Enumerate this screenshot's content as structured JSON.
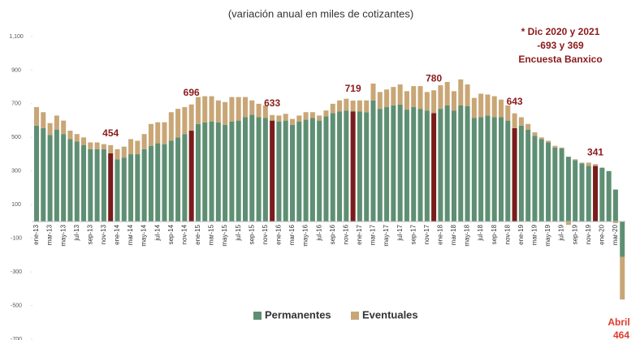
{
  "chart_data": {
    "type": "bar",
    "stacked": true,
    "title": "(variación anual en miles de cotizantes)",
    "note": [
      "* Dic 2020 y 2021",
      "-693 y 369",
      "Encuesta Banxico"
    ],
    "side_note": [
      "Abril",
      "464"
    ],
    "annotations": [
      "454",
      "696",
      "633",
      "719",
      "780",
      "643",
      "341"
    ],
    "highlight_color": "#7a1c1c",
    "categories": [
      "ene-13",
      null,
      "mar-13",
      null,
      "may-13",
      null,
      "jul-13",
      null,
      "sep-13",
      null,
      "nov-13",
      null,
      "ene-14",
      null,
      "mar-14",
      null,
      "may-14",
      null,
      "jul-14",
      null,
      "sep-14",
      null,
      "nov-14",
      null,
      "ene-15",
      null,
      "mar-15",
      null,
      "may-15",
      null,
      "jul-15",
      null,
      "sep-15",
      null,
      "nov-15",
      null,
      "ene-16",
      null,
      "mar-16",
      null,
      "may-16",
      null,
      "jul-16",
      null,
      "sep-16",
      null,
      "nov-16",
      null,
      "ene-17",
      null,
      "mar-17",
      null,
      "may-17",
      null,
      "jul-17",
      null,
      "sep-17",
      null,
      "nov-17",
      null,
      "ene-18",
      null,
      "mar-18",
      null,
      "may-18",
      null,
      "jul-18",
      null,
      "sep-18",
      null,
      "nov-18",
      null,
      "ene-19",
      null,
      "mar-19",
      null,
      "may-19",
      null,
      "jul-19",
      null,
      "sep-19",
      null,
      "nov-19",
      null,
      "ene-20",
      null,
      "mar-20",
      null
    ],
    "series": [
      {
        "name": "Permanentes",
        "color": "#5e8f73",
        "values": [
          570,
          555,
          515,
          545,
          520,
          490,
          475,
          455,
          430,
          430,
          430,
          405,
          370,
          380,
          400,
          400,
          430,
          450,
          465,
          460,
          480,
          500,
          520,
          540,
          580,
          590,
          595,
          590,
          575,
          595,
          600,
          620,
          635,
          620,
          615,
          600,
          595,
          600,
          575,
          595,
          605,
          615,
          600,
          625,
          645,
          655,
          660,
          655,
          655,
          650,
          720,
          670,
          680,
          690,
          695,
          665,
          680,
          670,
          660,
          645,
          670,
          690,
          660,
          690,
          685,
          615,
          620,
          630,
          620,
          620,
          600,
          555,
          570,
          545,
          510,
          490,
          470,
          440,
          435,
          385,
          365,
          345,
          330,
          330,
          320,
          300,
          190,
          -210
        ]
      },
      {
        "name": "Eventuales",
        "color": "#c9a676",
        "values": [
          110,
          95,
          70,
          85,
          80,
          50,
          45,
          45,
          40,
          40,
          30,
          49,
          60,
          65,
          90,
          80,
          90,
          130,
          125,
          130,
          170,
          170,
          160,
          156,
          160,
          155,
          150,
          130,
          135,
          145,
          140,
          120,
          85,
          80,
          75,
          33,
          35,
          40,
          35,
          35,
          45,
          35,
          30,
          35,
          55,
          65,
          70,
          64,
          65,
          70,
          100,
          100,
          105,
          110,
          120,
          110,
          125,
          135,
          110,
          135,
          140,
          140,
          115,
          155,
          130,
          120,
          140,
          125,
          125,
          105,
          90,
          88,
          50,
          35,
          20,
          10,
          10,
          10,
          5,
          -20,
          5,
          5,
          20,
          11,
          0,
          0,
          -10,
          -254
        ]
      }
    ],
    "ylim": [
      -700,
      1100
    ],
    "yticks": [
      {
        "value": 1100,
        "label": "1,100"
      },
      900,
      700,
      500,
      300,
      100,
      -100,
      -300,
      -500,
      -700
    ],
    "legend": "bottom"
  }
}
